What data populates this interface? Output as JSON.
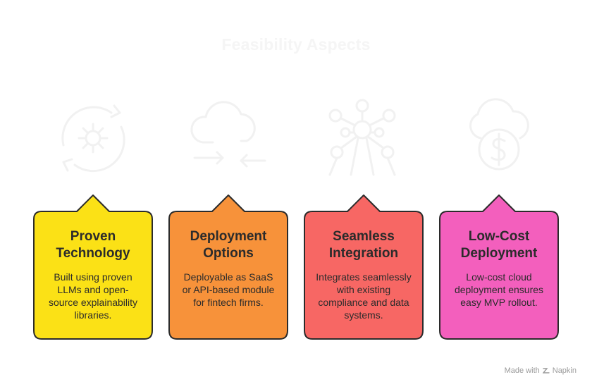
{
  "title": "Feasibility Aspects",
  "colors": {
    "card1": "#fbe116",
    "card2": "#f7923a",
    "card3": "#f76764",
    "card4": "#f35fbd",
    "outline": "#2b2b2b",
    "icon": "#f1f1f1"
  },
  "cards": [
    {
      "title": "Proven Technology",
      "description": "Built using proven LLMs and open-source explainability libraries.",
      "icon": "gear-cycle-icon"
    },
    {
      "title": "Deployment Options",
      "description": "Deployable as SaaS or API-based module for fintech firms.",
      "icon": "cloud-transfer-icon"
    },
    {
      "title": "Seamless Integration",
      "description": "Integrates seamlessly with existing compliance and data systems.",
      "icon": "network-nodes-icon"
    },
    {
      "title": "Low-Cost Deployment",
      "description": "Low-cost cloud deployment ensures easy MVP rollout.",
      "icon": "cloud-dollar-icon"
    }
  ],
  "footer": {
    "text": "Made with",
    "brand": "Napkin"
  }
}
